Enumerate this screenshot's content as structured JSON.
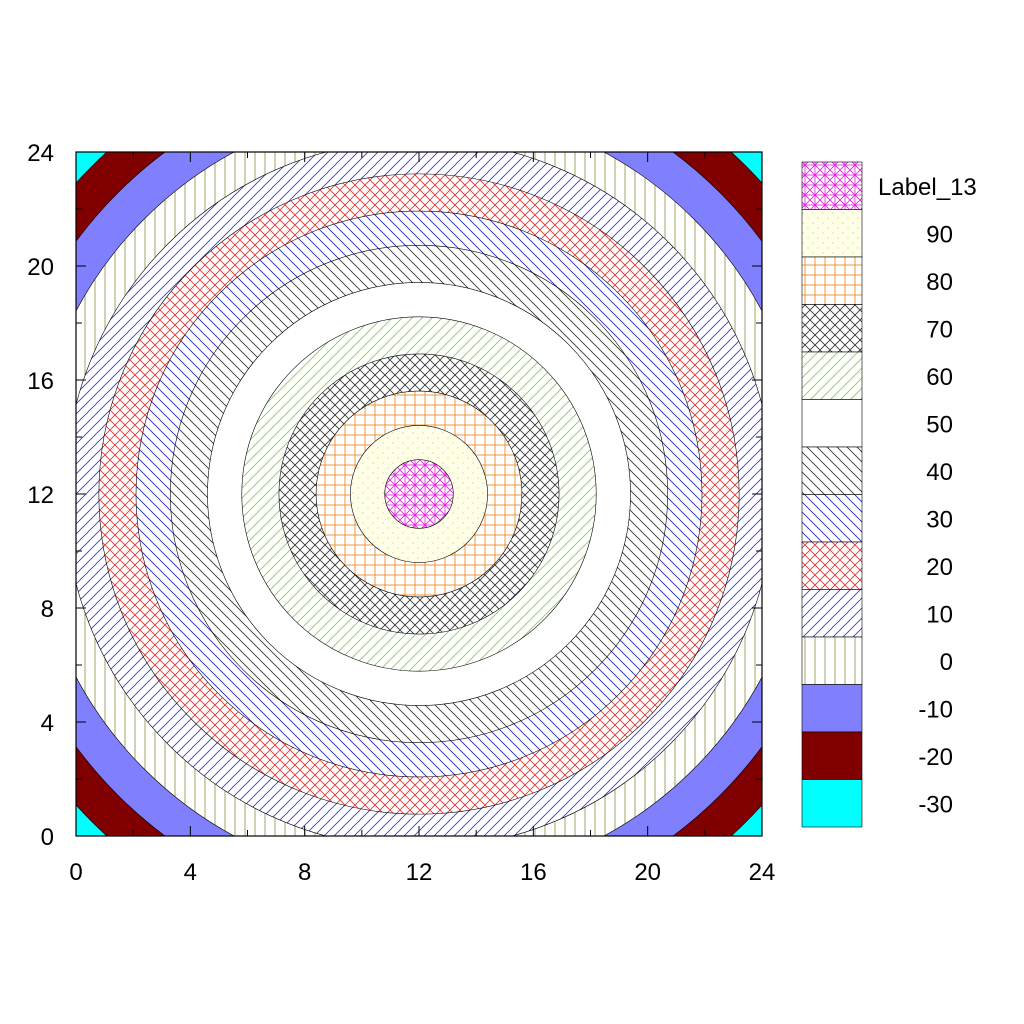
{
  "chart_data": {
    "type": "heatmap",
    "subtype": "filled-contour",
    "title": "",
    "xlabel": "",
    "ylabel": "",
    "xlim": [
      0,
      24
    ],
    "ylim": [
      0,
      24
    ],
    "xticks": [
      "0",
      "4",
      "8",
      "12",
      "16",
      "20",
      "24"
    ],
    "yticks": [
      "0",
      "4",
      "8",
      "12",
      "16",
      "20",
      "24"
    ],
    "center": [
      12,
      12
    ],
    "contour_radii": [
      1.2,
      2.4,
      3.6,
      4.9,
      6.2,
      7.4,
      8.7,
      9.9,
      11.2,
      12.4,
      13.6,
      14.9,
      16.2
    ],
    "levels": [
      {
        "label": "Label_13",
        "fill": "#ffffff",
        "pattern": "grid-diag",
        "color": "#e020e0"
      },
      {
        "label": "90",
        "fill": "#ffffe8",
        "pattern": "dots",
        "color": "#d8d890"
      },
      {
        "label": "80",
        "fill": "#ffffff",
        "pattern": "grid",
        "color": "#f08010"
      },
      {
        "label": "70",
        "fill": "#ffffff",
        "pattern": "crosshatch",
        "color": "#303030"
      },
      {
        "label": "60",
        "fill": "#ffffff",
        "pattern": "diag-up",
        "color": "#80d040"
      },
      {
        "label": "50",
        "fill": "#ffffff",
        "pattern": "none",
        "color": "#000000"
      },
      {
        "label": "40",
        "fill": "#ffffff",
        "pattern": "diag-down",
        "color": "#303030"
      },
      {
        "label": "30",
        "fill": "#ffffff",
        "pattern": "diag-down",
        "color": "#2020c0"
      },
      {
        "label": "20",
        "fill": "#ffffff",
        "pattern": "crosshatch",
        "color": "#e03030"
      },
      {
        "label": "10",
        "fill": "#ffffff",
        "pattern": "diag-up",
        "color": "#3030e0"
      },
      {
        "label": "0",
        "fill": "#ffffff",
        "pattern": "vertical",
        "color": "#909040"
      },
      {
        "label": "-10",
        "fill": "#8080ff",
        "pattern": "none",
        "color": "#8080ff"
      },
      {
        "label": "-20",
        "fill": "#800000",
        "pattern": "none",
        "color": "#800000"
      },
      {
        "label": "-30",
        "fill": "#00ffff",
        "pattern": "none",
        "color": "#00ffff"
      }
    ],
    "legend_position": "right"
  }
}
